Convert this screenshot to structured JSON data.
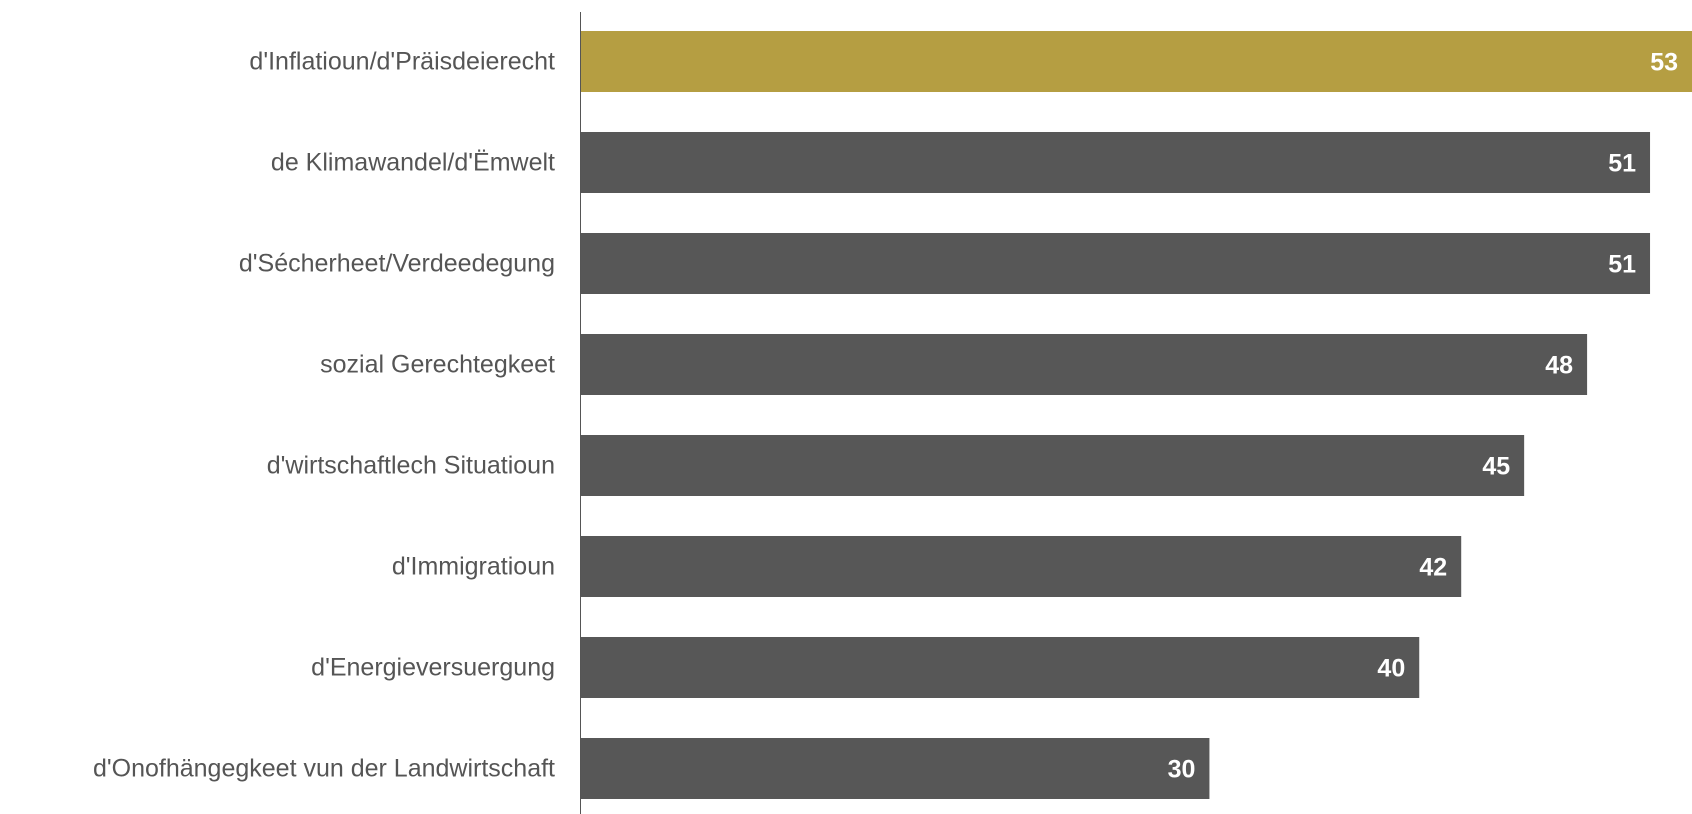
{
  "chart_data": {
    "type": "bar",
    "orientation": "horizontal",
    "categories": [
      "d'Inflatioun/d'Präisdeierecht",
      "de Klimawandel/d'Ëmwelt",
      "d'Sécherheet/Verdeedegung",
      "sozial Gerechtegkeet",
      "d'wirtschaftlech Situatioun",
      "d'Immigratioun",
      "d'Energieversuergung",
      "d'Onofhängegkeet vun der Landwirtschaft"
    ],
    "values": [
      53,
      51,
      51,
      48,
      45,
      42,
      40,
      30
    ],
    "highlight_index": 0,
    "xlim": [
      0,
      53
    ],
    "grid": false,
    "legend": "none",
    "title": "",
    "xlabel": "",
    "ylabel": ""
  },
  "colors": {
    "highlight_bar": "#b59e42",
    "default_bar": "#575757",
    "category_text": "#555555",
    "value_text": "#ffffff",
    "axis_line": "#555555"
  }
}
